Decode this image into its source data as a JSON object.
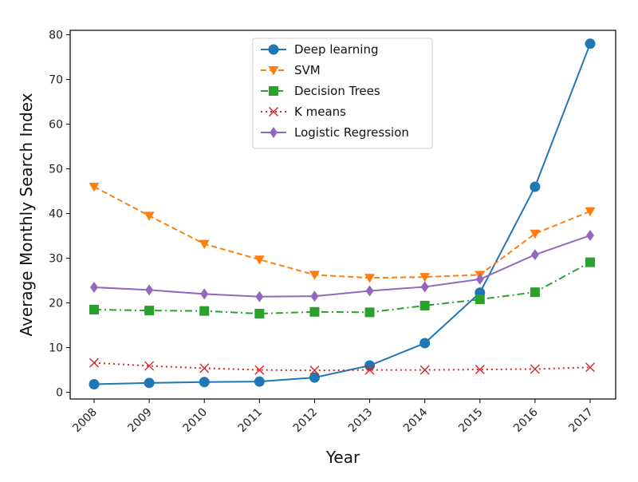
{
  "chart_data": {
    "type": "line",
    "xlabel": "Year",
    "ylabel": "Average Monthly Search Index",
    "x": [
      "2008",
      "2009",
      "2010",
      "2011",
      "2012",
      "2013",
      "2014",
      "2015",
      "2016",
      "2017"
    ],
    "ylim": [
      -1.5,
      81
    ],
    "yticks": [
      "0",
      "10",
      "20",
      "30",
      "40",
      "50",
      "60",
      "70",
      "80"
    ],
    "grid": false,
    "legend_position": "top-center",
    "series": [
      {
        "name": "Deep learning",
        "color": "#1f77b4",
        "marker": "circle",
        "linestyle": "solid",
        "values": [
          1.8,
          2.1,
          2.3,
          2.4,
          3.3,
          6.0,
          11.0,
          22.3,
          46.0,
          78.0
        ]
      },
      {
        "name": "SVM",
        "color": "#ff7f0e",
        "marker": "triangle-down",
        "linestyle": "dashed",
        "values": [
          46.0,
          39.5,
          33.2,
          29.7,
          26.3,
          25.6,
          25.8,
          26.3,
          35.5,
          40.5
        ]
      },
      {
        "name": "Decision Trees",
        "color": "#2ca02c",
        "marker": "square",
        "linestyle": "dashdot",
        "values": [
          18.5,
          18.3,
          18.2,
          17.6,
          18.0,
          17.9,
          19.4,
          20.8,
          22.4,
          29.1
        ]
      },
      {
        "name": "K means",
        "color": "#d62728",
        "marker": "x",
        "linestyle": "dotted",
        "values": [
          6.6,
          5.9,
          5.4,
          5.0,
          4.9,
          5.0,
          5.0,
          5.1,
          5.2,
          5.6
        ]
      },
      {
        "name": "Logistic Regression",
        "color": "#9467bd",
        "marker": "diamond",
        "linestyle": "solid",
        "values": [
          23.5,
          22.9,
          22.0,
          21.4,
          21.5,
          22.7,
          23.6,
          25.3,
          30.8,
          35.1
        ]
      }
    ]
  }
}
